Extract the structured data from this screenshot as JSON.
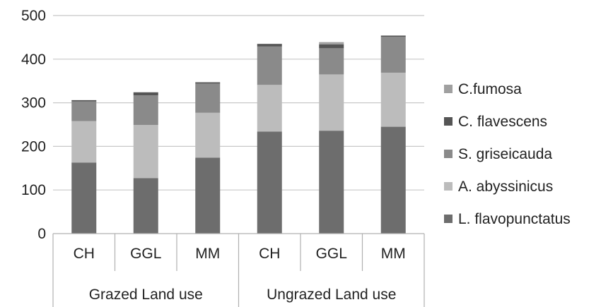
{
  "chart_data": {
    "type": "bar",
    "stacked": true,
    "title": "",
    "xlabel": "",
    "ylabel": "",
    "ylim": [
      0,
      500
    ],
    "yticks": [
      0,
      100,
      200,
      300,
      400,
      500
    ],
    "grid": "horizontal",
    "legend_position": "right",
    "categories": [
      "CH",
      "GGL",
      "MM",
      "CH",
      "GGL",
      "MM"
    ],
    "groups": [
      {
        "label": "Grazed Land use",
        "categories": [
          0,
          1,
          2
        ]
      },
      {
        "label": "Ungrazed Land use",
        "categories": [
          3,
          4,
          5
        ]
      }
    ],
    "series": [
      {
        "name": "L. flavopunctatus",
        "color": "#6d6d6d",
        "values": [
          163,
          127,
          174,
          234,
          236,
          245
        ]
      },
      {
        "name": "A. abyssinicus",
        "color": "#bcbcbc",
        "values": [
          95,
          122,
          103,
          107,
          129,
          124
        ]
      },
      {
        "name": "S. griseicauda",
        "color": "#8a8a8a",
        "values": [
          45,
          68,
          67,
          88,
          60,
          82
        ]
      },
      {
        "name": "C. flavescens",
        "color": "#555555",
        "values": [
          3,
          7,
          3,
          6,
          9,
          3
        ]
      },
      {
        "name": "C.fumosa",
        "color": "#a0a0a0",
        "values": [
          0,
          0,
          0,
          0,
          5,
          0
        ]
      }
    ],
    "legend_order": [
      4,
      3,
      2,
      1,
      0
    ]
  }
}
